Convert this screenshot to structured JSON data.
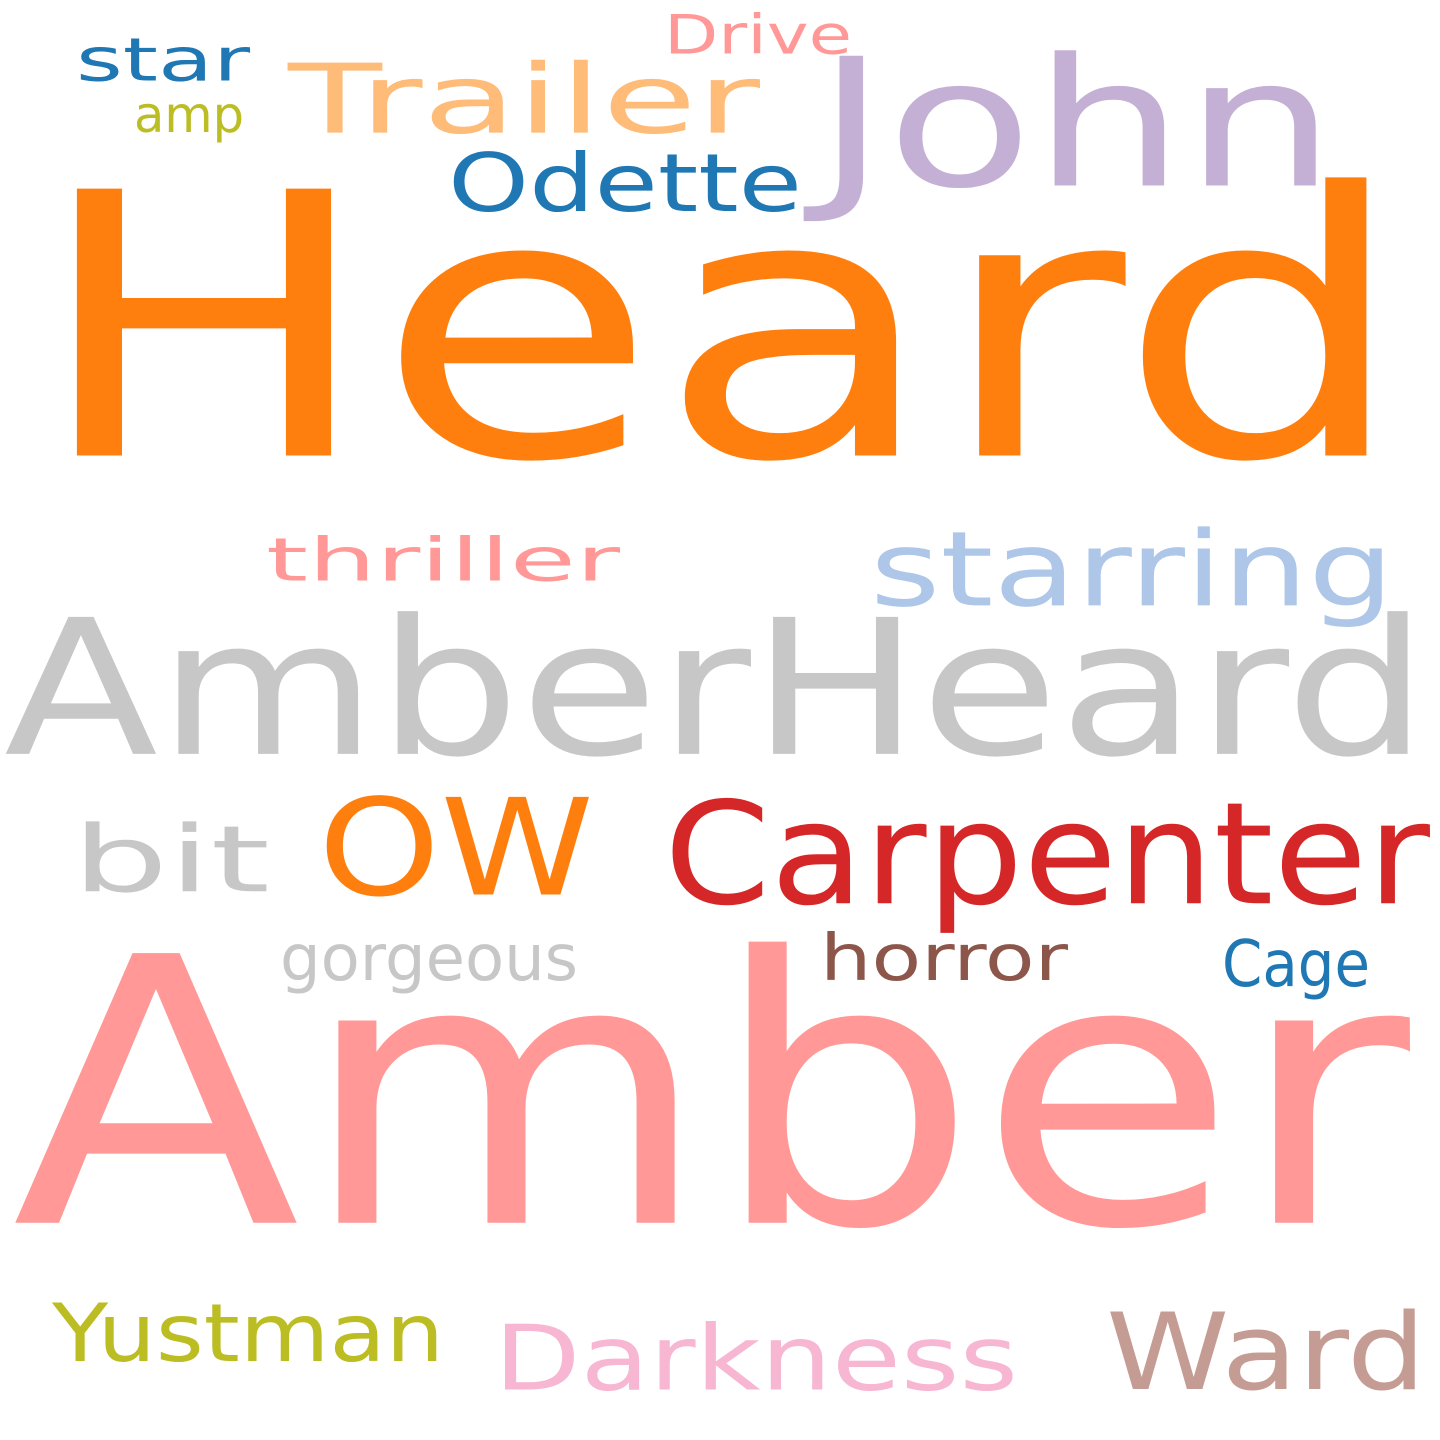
{
  "words": [
    {
      "text": "Heard",
      "color": "#ff7f0e"
    },
    {
      "text": "Amber",
      "color": "#ff9896"
    },
    {
      "text": "AmberHeard",
      "color": "#c7c7c7"
    },
    {
      "text": "John",
      "color": "#c5b0d5"
    },
    {
      "text": "OW",
      "color": "#ff7f0e"
    },
    {
      "text": "Carpenter",
      "color": "#d62728"
    },
    {
      "text": "Trailer",
      "color": "#ffbb78"
    },
    {
      "text": "Ward",
      "color": "#c49c94"
    },
    {
      "text": "starring",
      "color": "#aec7e8"
    },
    {
      "text": "Odette",
      "color": "#1f77b4"
    },
    {
      "text": "Darkness",
      "color": "#f7b6d2"
    },
    {
      "text": "Yustman",
      "color": "#bcbd22"
    },
    {
      "text": "bit",
      "color": "#c7c7c7"
    },
    {
      "text": "thriller",
      "color": "#ff9896"
    },
    {
      "text": "horror",
      "color": "#8c564b"
    },
    {
      "text": "gorgeous",
      "color": "#c7c7c7"
    },
    {
      "text": "Cage",
      "color": "#1f77b4"
    },
    {
      "text": "star",
      "color": "#1f77b4"
    },
    {
      "text": "Drive",
      "color": "#ff9896"
    },
    {
      "text": "amp",
      "color": "#bcbd22"
    }
  ]
}
